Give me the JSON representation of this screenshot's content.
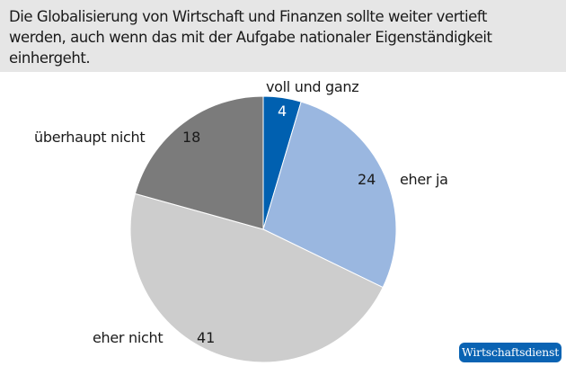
{
  "title": "Die Globalisierung von Wirtschaft und Finanzen sollte weiter vertieft werden, auch wenn das mit der Aufgabe nationaler Eigenständigkeit einhergeht.",
  "logo": "Wirtschaftsdienst",
  "chart_data": {
    "type": "pie",
    "title": "Die Globalisierung von Wirtschaft und Finanzen sollte weiter vertieft werden, auch wenn das mit der Aufgabe nationaler Eigenständigkeit einhergeht.",
    "start_angle": "12 o'clock",
    "direction": "clockwise",
    "slices": [
      {
        "label": "voll und ganz",
        "value": 4,
        "color": "#0060b0"
      },
      {
        "label": "eher ja",
        "value": 24,
        "color": "#9ab7e0"
      },
      {
        "label": "eher nicht",
        "value": 41,
        "color": "#cdcdcd"
      },
      {
        "label": "überhaupt nicht",
        "value": 18,
        "color": "#7b7b7b"
      }
    ]
  }
}
